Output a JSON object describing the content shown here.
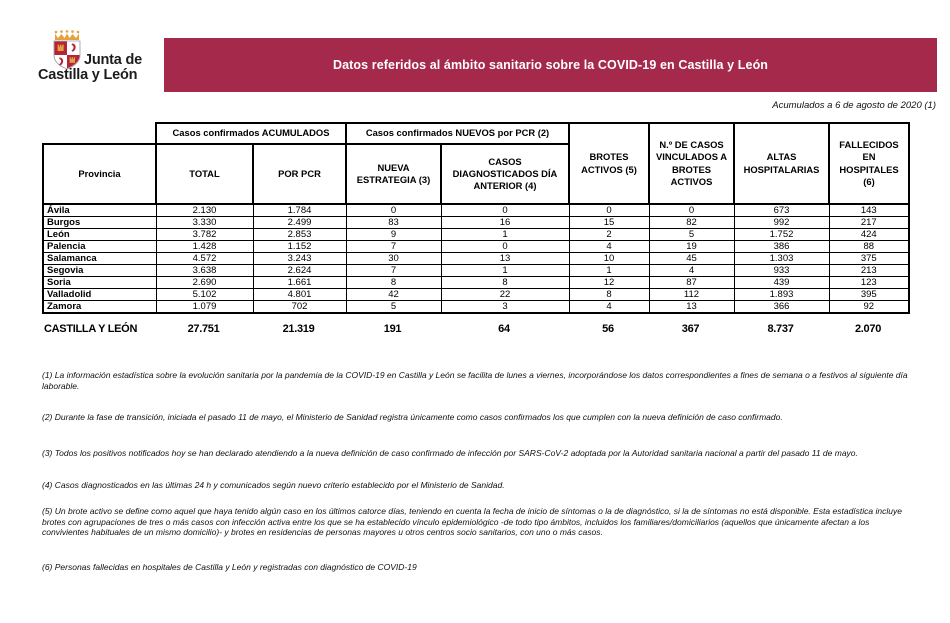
{
  "logo": {
    "org_line1": "Junta de",
    "org_line2": "Castilla y León",
    "icon": "coat-of-arms-castilla-y-leon"
  },
  "banner": {
    "title": "Datos referidos al ámbito sanitario sobre la COVID-19 en Castilla y León",
    "color": "#A5294B",
    "text_color": "#FFFFFF"
  },
  "date_note": "Acumulados a 6 de agosto de 2020 (1)",
  "table": {
    "group_headers": [
      "Casos confirmados ACUMULADOS",
      "Casos confirmados NUEVOS por PCR (2)"
    ],
    "columns": [
      "Provincia",
      "TOTAL",
      "POR PCR",
      "NUEVA ESTRATEGIA (3)",
      "CASOS DIAGNOSTICADOS DÍA ANTERIOR (4)",
      "BROTES ACTIVOS (5)",
      "N.º DE CASOS VINCULADOS A BROTES ACTIVOS",
      "ALTAS HOSPITALARIAS",
      "FALLECIDOS EN HOSPITALES (6)"
    ],
    "rows": [
      [
        "Ávila",
        "2.130",
        "1.784",
        "0",
        "0",
        "0",
        "0",
        "673",
        "143"
      ],
      [
        "Burgos",
        "3.330",
        "2.499",
        "83",
        "16",
        "15",
        "82",
        "992",
        "217"
      ],
      [
        "León",
        "3.782",
        "2.853",
        "9",
        "1",
        "2",
        "5",
        "1.752",
        "424"
      ],
      [
        "Palencia",
        "1.428",
        "1.152",
        "7",
        "0",
        "4",
        "19",
        "386",
        "88"
      ],
      [
        "Salamanca",
        "4.572",
        "3.243",
        "30",
        "13",
        "10",
        "45",
        "1.303",
        "375"
      ],
      [
        "Segovia",
        "3.638",
        "2.624",
        "7",
        "1",
        "1",
        "4",
        "933",
        "213"
      ],
      [
        "Soria",
        "2.690",
        "1.661",
        "8",
        "8",
        "12",
        "87",
        "439",
        "123"
      ],
      [
        "Valladolid",
        "5.102",
        "4.801",
        "42",
        "22",
        "8",
        "112",
        "1.893",
        "395"
      ],
      [
        "Zamora",
        "1.079",
        "702",
        "5",
        "3",
        "4",
        "13",
        "366",
        "92"
      ]
    ],
    "total_row": [
      "CASTILLA Y LEÓN",
      "27.751",
      "21.319",
      "191",
      "64",
      "56",
      "367",
      "8.737",
      "2.070"
    ]
  },
  "footnotes": [
    "(1) La información estadística sobre la evolución sanitaria por la pandemia de la COVID-19 en Castilla y León se facilita de lunes a viernes, incorporándose los datos correspondientes a fines de semana o a festivos al siguiente día laborable.",
    "(2) Durante la fase de transición, iniciada el pasado 11 de mayo, el Ministerio de Sanidad registra únicamente como casos confirmados los que cumplen con la nueva definición de caso confirmado.",
    "(3) Todos los positivos notificados hoy se han declarado atendiendo a la nueva definición de caso confirmado de infección por SARS-CoV-2 adoptada por la Autoridad sanitaria nacional a partir del pasado 11 de mayo.",
    "(4) Casos diagnosticados en las últimas 24 h y comunicados según nuevo criterio establecido por el Ministerio de Sanidad.",
    "(5) Un brote activo se define como aquel que haya tenido algún caso en los últimos catorce días, teniendo en cuenta la fecha de inicio de síntomas o la de diagnóstico, si la de síntomas no está disponible. Esta estadística incluye brotes con agrupaciones de tres o más casos con infección activa entre los que se ha establecido vínculo epidemiológico -de todo tipo ámbitos, incluidos los familiares/domiciliarios (aquellos que únicamente afectan a los convivientes habituales de un mismo domicilio)- y brotes en residencias de personas mayores u otros centros socio sanitarios, con uno o más casos.",
    "(6) Personas fallecidas en hospitales de Castilla y León y registradas con diagnóstico de COVID-19"
  ]
}
